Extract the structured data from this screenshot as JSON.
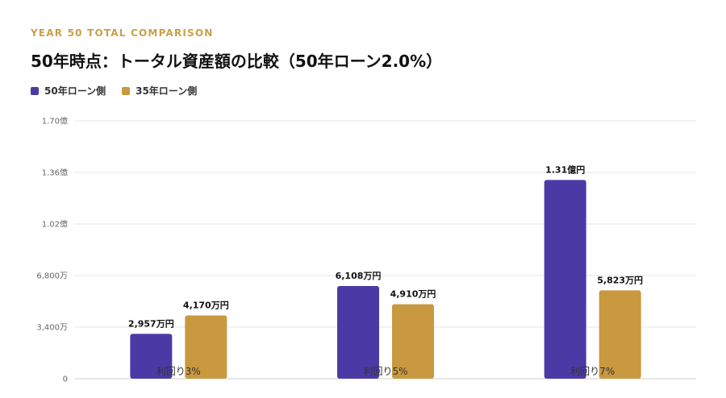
{
  "header": {
    "eyebrow": "YEAR 50 TOTAL COMPARISON",
    "title": "50年時点：トータル資産額の比較（50年ローン2.0%）"
  },
  "colors": {
    "series1": "#4b3aa6",
    "series2": "#c9993f",
    "grid": "#e4e4e4"
  },
  "chart_data": {
    "type": "bar",
    "categories": [
      "利回り3%",
      "利回り5%",
      "利回り7%"
    ],
    "series": [
      {
        "name": "50年ローン側",
        "values": [
          2957,
          6108,
          13100
        ],
        "labels": [
          "2,957万円",
          "6,108万円",
          "1.31億円"
        ]
      },
      {
        "name": "35年ローン側",
        "values": [
          4170,
          4910,
          5823
        ],
        "labels": [
          "4,170万円",
          "4,910万円",
          "5,823万円"
        ]
      }
    ],
    "ylim": [
      0,
      17000
    ],
    "yticks": [
      0,
      3400,
      6800,
      10200,
      13600,
      17000
    ],
    "ytick_labels": [
      "0",
      "3,400万",
      "6,800万",
      "1.02億",
      "1.36億",
      "1.70億"
    ],
    "grid": true,
    "legend_position": "top-left",
    "xlabel": "",
    "ylabel": ""
  }
}
